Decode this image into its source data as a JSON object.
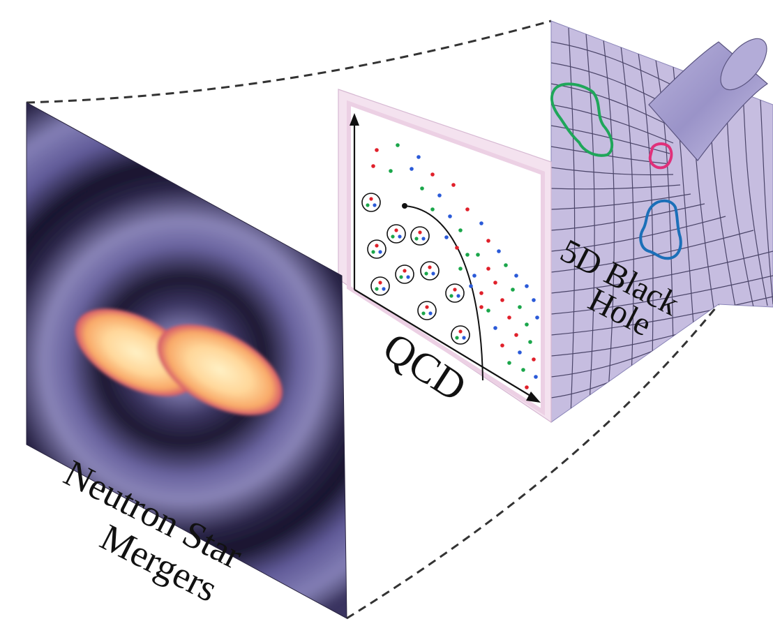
{
  "labels": {
    "neutron_star_line1": "Neutron Star",
    "neutron_star_line2": "Mergers",
    "qcd": "QCD",
    "black_hole_line1": "5D Black",
    "black_hole_line2": "Hole"
  },
  "colors": {
    "merger_background": "#3d2f63",
    "merger_core": "#ffe4a8",
    "merger_glow": "#f08a5a",
    "qcd_border": "#f6d8ec",
    "grid_surface": "#c9bfe0",
    "loop_green": "#1fa65a",
    "loop_magenta": "#e0307a",
    "loop_blue": "#1b6fb8",
    "quark_red": "#e0202a",
    "quark_green": "#1aa64a",
    "quark_blue": "#2a5ad8"
  },
  "icons": {
    "frustum": "dashed-frustum-lines",
    "merger_panel": "neutron-star-merger-image",
    "qcd_panel": "qcd-phase-diagram",
    "bh_panel": "black-hole-grid-surface"
  }
}
